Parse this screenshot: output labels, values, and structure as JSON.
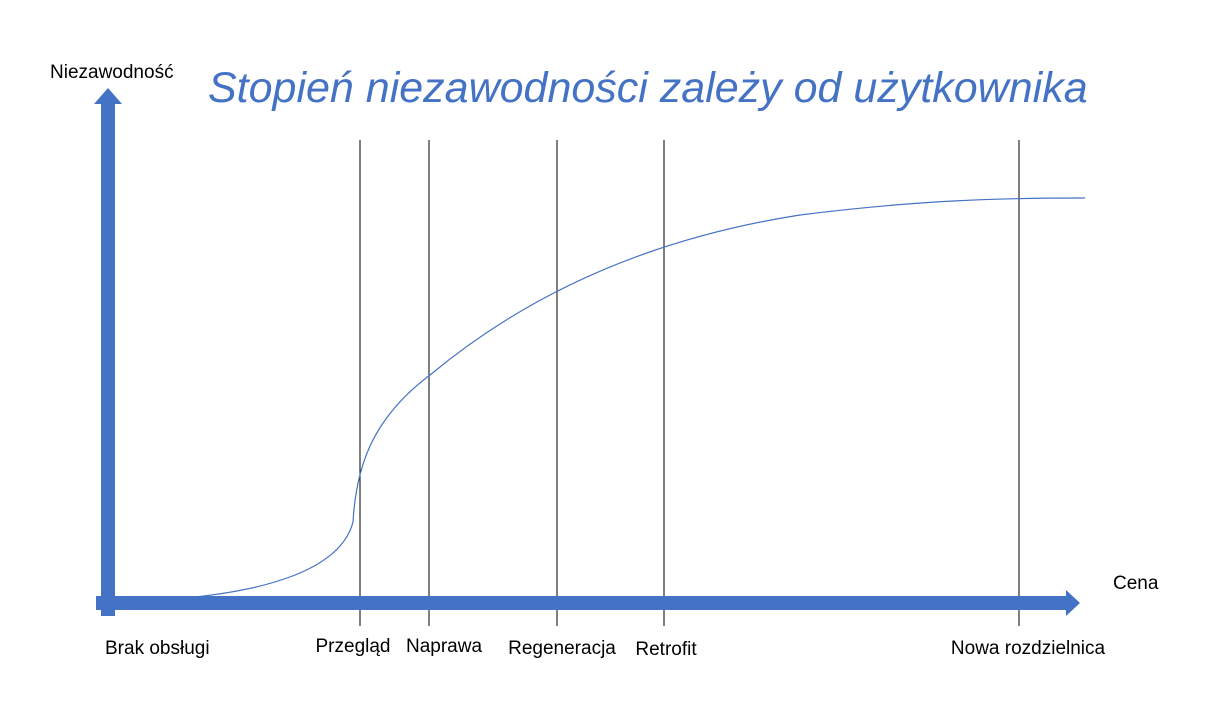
{
  "title": "Stopień niezawodności zależy od użytkownika",
  "y_axis_label": "Niezawodność",
  "x_axis_label": "Cena",
  "labels": [
    "Brak obsługi",
    "Przegląd",
    "Naprawa",
    "Regeneracja",
    "Retrofit",
    "Nowa rozdzielnica"
  ]
}
